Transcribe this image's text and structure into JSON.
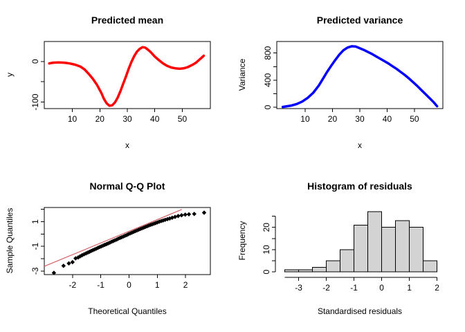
{
  "figure_bg": "#ffffff",
  "chart_data": [
    {
      "name": "predicted-mean",
      "type": "line",
      "title": "Predicted mean",
      "xlabel": "x",
      "ylabel": "y",
      "color": "#ff0000",
      "line_width": 3.5,
      "frame": true,
      "xlim": [
        -0.2,
        60.2
      ],
      "ylim": [
        -116,
        49
      ],
      "xticks": [
        {
          "v": 10,
          "l": "10"
        },
        {
          "v": 20,
          "l": "20"
        },
        {
          "v": 30,
          "l": "30"
        },
        {
          "v": 40,
          "l": "40"
        },
        {
          "v": 50,
          "l": "50"
        }
      ],
      "yticks": [
        {
          "v": 0,
          "l": "0"
        },
        {
          "v": -50,
          "l": ""
        },
        {
          "v": -100,
          "l": "-100"
        }
      ],
      "points": [
        [
          1.6,
          -5
        ],
        [
          3,
          -3
        ],
        [
          5,
          -2.5
        ],
        [
          7,
          -3
        ],
        [
          9,
          -5
        ],
        [
          11,
          -8
        ],
        [
          13,
          -13
        ],
        [
          14.5,
          -20
        ],
        [
          16,
          -31
        ],
        [
          17.5,
          -43
        ],
        [
          19,
          -58
        ],
        [
          20.5,
          -77
        ],
        [
          21.5,
          -92
        ],
        [
          22.5,
          -103
        ],
        [
          23.5,
          -109
        ],
        [
          24.5,
          -108
        ],
        [
          25.5,
          -101
        ],
        [
          26.5,
          -89
        ],
        [
          27.5,
          -73
        ],
        [
          28.5,
          -55
        ],
        [
          29.5,
          -37
        ],
        [
          30.5,
          -18
        ],
        [
          31.5,
          -1
        ],
        [
          32.5,
          13
        ],
        [
          33.5,
          24
        ],
        [
          34.5,
          31
        ],
        [
          35.5,
          35
        ],
        [
          36.5,
          34
        ],
        [
          37.5,
          29
        ],
        [
          38.5,
          23
        ],
        [
          40,
          12
        ],
        [
          41.5,
          3
        ],
        [
          43,
          -5
        ],
        [
          44.5,
          -11
        ],
        [
          46,
          -15
        ],
        [
          47.5,
          -17
        ],
        [
          49,
          -18
        ],
        [
          50.5,
          -17
        ],
        [
          52,
          -14
        ],
        [
          53.5,
          -9
        ],
        [
          55,
          -3
        ],
        [
          56,
          3
        ],
        [
          57,
          9
        ],
        [
          57.8,
          14
        ]
      ]
    },
    {
      "name": "predicted-variance",
      "type": "line",
      "title": "Predicted variance",
      "xlabel": "x",
      "ylabel": "Variance",
      "color": "#0000ff",
      "line_width": 3.5,
      "frame": true,
      "xlim": [
        -0.38,
        60.4
      ],
      "ylim": [
        -20,
        970
      ],
      "xticks": [
        {
          "v": 10,
          "l": "10"
        },
        {
          "v": 20,
          "l": "20"
        },
        {
          "v": 30,
          "l": "30"
        },
        {
          "v": 40,
          "l": "40"
        },
        {
          "v": 50,
          "l": "50"
        }
      ],
      "yticks": [
        {
          "v": 0,
          "l": "0"
        },
        {
          "v": 200,
          "l": ""
        },
        {
          "v": 400,
          "l": "400"
        },
        {
          "v": 600,
          "l": ""
        },
        {
          "v": 800,
          "l": "800"
        }
      ],
      "points": [
        [
          1.8,
          5
        ],
        [
          3,
          12
        ],
        [
          5,
          25
        ],
        [
          7,
          48
        ],
        [
          9,
          85
        ],
        [
          11,
          140
        ],
        [
          13,
          215
        ],
        [
          15,
          320
        ],
        [
          16.5,
          420
        ],
        [
          18,
          520
        ],
        [
          19.5,
          610
        ],
        [
          21,
          695
        ],
        [
          22.5,
          775
        ],
        [
          24,
          840
        ],
        [
          25.5,
          880
        ],
        [
          27,
          900
        ],
        [
          28.5,
          895
        ],
        [
          30,
          870
        ],
        [
          31.5,
          845
        ],
        [
          33,
          815
        ],
        [
          34.5,
          785
        ],
        [
          36,
          750
        ],
        [
          37.5,
          715
        ],
        [
          39,
          680
        ],
        [
          40.5,
          645
        ],
        [
          42,
          605
        ],
        [
          43.5,
          565
        ],
        [
          45,
          520
        ],
        [
          46.5,
          475
        ],
        [
          48,
          425
        ],
        [
          49.5,
          370
        ],
        [
          51,
          315
        ],
        [
          52.5,
          255
        ],
        [
          54,
          195
        ],
        [
          55.5,
          135
        ],
        [
          57,
          75
        ],
        [
          58.3,
          15
        ]
      ]
    },
    {
      "name": "normal-qq-plot",
      "type": "scatter",
      "title": "Normal Q-Q Plot",
      "xlabel": "Theoretical Quantiles",
      "ylabel": "Sample Quantiles",
      "marker_color": "#000000",
      "frame": true,
      "xlim": [
        -3.0,
        2.88
      ],
      "ylim": [
        -3.29,
        2.15
      ],
      "xticks": [
        {
          "v": -2,
          "l": "-2"
        },
        {
          "v": -1,
          "l": "-1"
        },
        {
          "v": 0,
          "l": "0"
        },
        {
          "v": 1,
          "l": "1"
        },
        {
          "v": 2,
          "l": "2"
        }
      ],
      "yticks": [
        {
          "v": -3,
          "l": "-3"
        },
        {
          "v": -2,
          "l": ""
        },
        {
          "v": -1,
          "l": "-1"
        },
        {
          "v": 0,
          "l": ""
        },
        {
          "v": 1,
          "l": "1"
        },
        {
          "v": 2,
          "l": ""
        }
      ],
      "refline": {
        "x1": -3.0,
        "y1": -2.62,
        "x2": 1.87,
        "y2": 1.99,
        "color": "#d26166"
      },
      "points": [
        [
          -2.66,
          -3.15
        ],
        [
          -2.32,
          -2.58
        ],
        [
          -2.13,
          -2.38
        ],
        [
          -2.0,
          -2.28
        ],
        [
          -1.89,
          -1.97
        ],
        [
          -1.8,
          -1.9
        ],
        [
          -1.73,
          -1.81
        ],
        [
          -1.66,
          -1.72
        ],
        [
          -1.59,
          -1.64
        ],
        [
          -1.52,
          -1.57
        ],
        [
          -1.46,
          -1.5
        ],
        [
          -1.4,
          -1.44
        ],
        [
          -1.34,
          -1.37
        ],
        [
          -1.28,
          -1.31
        ],
        [
          -1.22,
          -1.25
        ],
        [
          -1.16,
          -1.19
        ],
        [
          -1.1,
          -1.12
        ],
        [
          -1.04,
          -1.06
        ],
        [
          -0.98,
          -1.0
        ],
        [
          -0.92,
          -0.94
        ],
        [
          -0.86,
          -0.88
        ],
        [
          -0.8,
          -0.82
        ],
        [
          -0.74,
          -0.76
        ],
        [
          -0.68,
          -0.7
        ],
        [
          -0.62,
          -0.63
        ],
        [
          -0.56,
          -0.57
        ],
        [
          -0.5,
          -0.51
        ],
        [
          -0.44,
          -0.45
        ],
        [
          -0.38,
          -0.38
        ],
        [
          -0.32,
          -0.32
        ],
        [
          -0.26,
          -0.26
        ],
        [
          -0.2,
          -0.2
        ],
        [
          -0.14,
          -0.14
        ],
        [
          -0.08,
          -0.08
        ],
        [
          -0.02,
          -0.01
        ],
        [
          0.04,
          0.05
        ],
        [
          0.1,
          0.11
        ],
        [
          0.16,
          0.17
        ],
        [
          0.22,
          0.23
        ],
        [
          0.28,
          0.29
        ],
        [
          0.34,
          0.35
        ],
        [
          0.4,
          0.41
        ],
        [
          0.46,
          0.46
        ],
        [
          0.52,
          0.52
        ],
        [
          0.58,
          0.58
        ],
        [
          0.64,
          0.63
        ],
        [
          0.7,
          0.69
        ],
        [
          0.76,
          0.74
        ],
        [
          0.82,
          0.79
        ],
        [
          0.88,
          0.84
        ],
        [
          0.94,
          0.89
        ],
        [
          1.0,
          0.94
        ],
        [
          1.07,
          1.0
        ],
        [
          1.14,
          1.05
        ],
        [
          1.21,
          1.1
        ],
        [
          1.28,
          1.15
        ],
        [
          1.36,
          1.21
        ],
        [
          1.44,
          1.26
        ],
        [
          1.53,
          1.32
        ],
        [
          1.63,
          1.39
        ],
        [
          1.74,
          1.46
        ],
        [
          1.86,
          1.52
        ],
        [
          1.99,
          1.57
        ],
        [
          2.12,
          1.6
        ],
        [
          2.31,
          1.63
        ],
        [
          2.66,
          1.73
        ]
      ]
    },
    {
      "name": "histogram-of-residuals",
      "type": "histogram",
      "title": "Histogram of residuals",
      "xlabel": "Standardised residuals",
      "ylabel": "Frequency",
      "bar_fill": "#d3d3d3",
      "bar_stroke": "#000000",
      "frame": false,
      "xlim": [
        -3.79,
        2.21
      ],
      "ylim": [
        -1.2,
        28.9
      ],
      "bin_start": -3.5,
      "bin_width": 0.5,
      "counts": [
        1,
        1,
        2,
        5,
        10,
        21,
        27,
        20,
        23,
        20,
        5
      ],
      "xaxis_line": [
        -3.5,
        2
      ],
      "yaxis_line": [
        0,
        25
      ],
      "xticks": [
        {
          "v": -3,
          "l": "-3"
        },
        {
          "v": -2,
          "l": "-2"
        },
        {
          "v": -1,
          "l": "-1"
        },
        {
          "v": 0,
          "l": "0"
        },
        {
          "v": 1,
          "l": "1"
        },
        {
          "v": 2,
          "l": "2"
        }
      ],
      "yticks": [
        {
          "v": 0,
          "l": "0"
        },
        {
          "v": 5,
          "l": ""
        },
        {
          "v": 10,
          "l": "10"
        },
        {
          "v": 15,
          "l": ""
        },
        {
          "v": 20,
          "l": "20"
        },
        {
          "v": 25,
          "l": ""
        }
      ]
    }
  ]
}
